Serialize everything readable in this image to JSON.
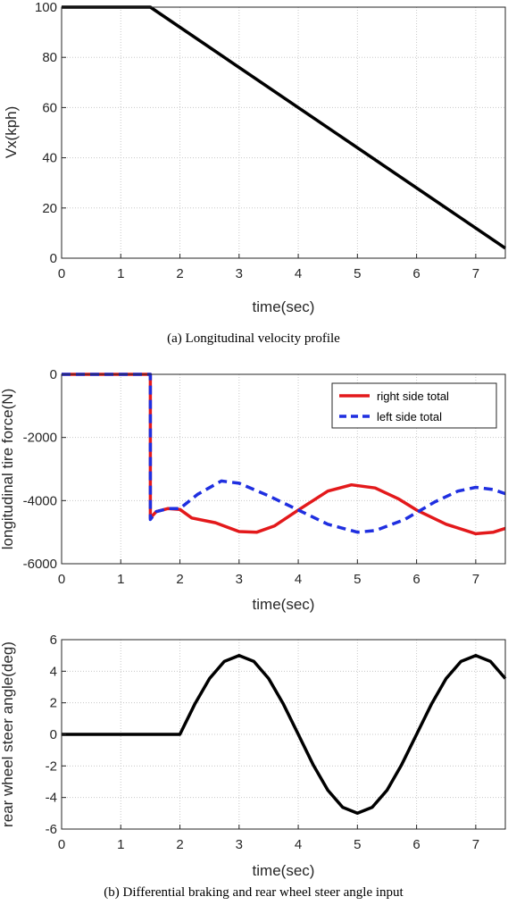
{
  "caption_a": "(a) Longitudinal velocity profile",
  "caption_b": "(b) Differential braking and rear wheel steer angle input",
  "chart_data": [
    {
      "type": "line",
      "title": "",
      "xlabel": "time(sec)",
      "ylabel": "Vx(kph)",
      "xlim": [
        0,
        7.5
      ],
      "ylim": [
        0,
        100
      ],
      "xticks": [
        0,
        1,
        2,
        3,
        4,
        5,
        6,
        7
      ],
      "yticks": [
        0,
        20,
        40,
        60,
        80,
        100
      ],
      "xtick_labels": [
        "0",
        "1",
        "2",
        "3",
        "4",
        "5",
        "6",
        "7"
      ],
      "ytick_labels": [
        "0",
        "20",
        "40",
        "60",
        "80",
        "100"
      ],
      "grid": true,
      "series": [
        {
          "color": "#000000",
          "dash": "solid",
          "points": [
            [
              0,
              100
            ],
            [
              1.5,
              100
            ],
            [
              7.5,
              4
            ]
          ]
        }
      ]
    },
    {
      "type": "line",
      "title": "",
      "xlabel": "time(sec)",
      "ylabel": "longitudinal tire force(N)",
      "xlim": [
        0,
        7.5
      ],
      "ylim": [
        -6000,
        0
      ],
      "xticks": [
        0,
        1,
        2,
        3,
        4,
        5,
        6,
        7
      ],
      "yticks": [
        -6000,
        -4000,
        -2000,
        0
      ],
      "xtick_labels": [
        "0",
        "1",
        "2",
        "3",
        "4",
        "5",
        "6",
        "7"
      ],
      "ytick_labels": [
        "-6000",
        "-4000",
        "-2000",
        "0"
      ],
      "grid": true,
      "legend": {
        "position": "top-right"
      },
      "series": [
        {
          "name": "right side total",
          "color": "#e3191b",
          "dash": "solid",
          "points": [
            [
              0,
              0
            ],
            [
              1.5,
              0
            ],
            [
              1.5,
              -4550
            ],
            [
              1.6,
              -4350
            ],
            [
              1.8,
              -4250
            ],
            [
              2.0,
              -4280
            ],
            [
              2.2,
              -4550
            ],
            [
              2.6,
              -4700
            ],
            [
              3.0,
              -4980
            ],
            [
              3.3,
              -5000
            ],
            [
              3.6,
              -4800
            ],
            [
              4.0,
              -4300
            ],
            [
              4.5,
              -3700
            ],
            [
              4.9,
              -3500
            ],
            [
              5.3,
              -3600
            ],
            [
              5.7,
              -3950
            ],
            [
              6.0,
              -4300
            ],
            [
              6.5,
              -4750
            ],
            [
              7.0,
              -5050
            ],
            [
              7.3,
              -5000
            ],
            [
              7.5,
              -4880
            ]
          ]
        },
        {
          "name": "left side total",
          "color": "#1f2fe0",
          "dash": "dashed",
          "points": [
            [
              0,
              0
            ],
            [
              1.5,
              0
            ],
            [
              1.5,
              -4600
            ],
            [
              1.6,
              -4350
            ],
            [
              1.8,
              -4250
            ],
            [
              2.0,
              -4250
            ],
            [
              2.3,
              -3800
            ],
            [
              2.7,
              -3380
            ],
            [
              3.0,
              -3450
            ],
            [
              3.5,
              -3850
            ],
            [
              4.0,
              -4300
            ],
            [
              4.5,
              -4750
            ],
            [
              5.0,
              -5000
            ],
            [
              5.3,
              -4950
            ],
            [
              5.8,
              -4600
            ],
            [
              6.3,
              -4050
            ],
            [
              6.7,
              -3700
            ],
            [
              7.0,
              -3580
            ],
            [
              7.3,
              -3650
            ],
            [
              7.5,
              -3780
            ]
          ]
        }
      ]
    },
    {
      "type": "line",
      "title": "",
      "xlabel": "time(sec)",
      "ylabel": "rear wheel steer angle(deg)",
      "xlim": [
        0,
        7.5
      ],
      "ylim": [
        -6,
        6
      ],
      "xticks": [
        0,
        1,
        2,
        3,
        4,
        5,
        6,
        7
      ],
      "yticks": [
        -6,
        -4,
        -2,
        0,
        2,
        4,
        6
      ],
      "xtick_labels": [
        "0",
        "1",
        "2",
        "3",
        "4",
        "5",
        "6",
        "7"
      ],
      "ytick_labels": [
        "-6",
        "-4",
        "-2",
        "0",
        "2",
        "4",
        "6"
      ],
      "grid": true,
      "series": [
        {
          "color": "#000000",
          "dash": "solid",
          "points": [
            [
              0,
              0
            ],
            [
              2.0,
              0
            ],
            [
              2.25,
              1.91
            ],
            [
              2.5,
              3.54
            ],
            [
              2.75,
              4.62
            ],
            [
              3.0,
              5.0
            ],
            [
              3.25,
              4.62
            ],
            [
              3.5,
              3.54
            ],
            [
              3.75,
              1.91
            ],
            [
              4.0,
              0
            ],
            [
              4.25,
              -1.91
            ],
            [
              4.5,
              -3.54
            ],
            [
              4.75,
              -4.62
            ],
            [
              5.0,
              -5.0
            ],
            [
              5.25,
              -4.62
            ],
            [
              5.5,
              -3.54
            ],
            [
              5.75,
              -1.91
            ],
            [
              6.0,
              0
            ],
            [
              6.25,
              1.91
            ],
            [
              6.5,
              3.54
            ],
            [
              6.75,
              4.62
            ],
            [
              7.0,
              5.0
            ],
            [
              7.25,
              4.62
            ],
            [
              7.5,
              3.54
            ]
          ]
        }
      ]
    }
  ]
}
